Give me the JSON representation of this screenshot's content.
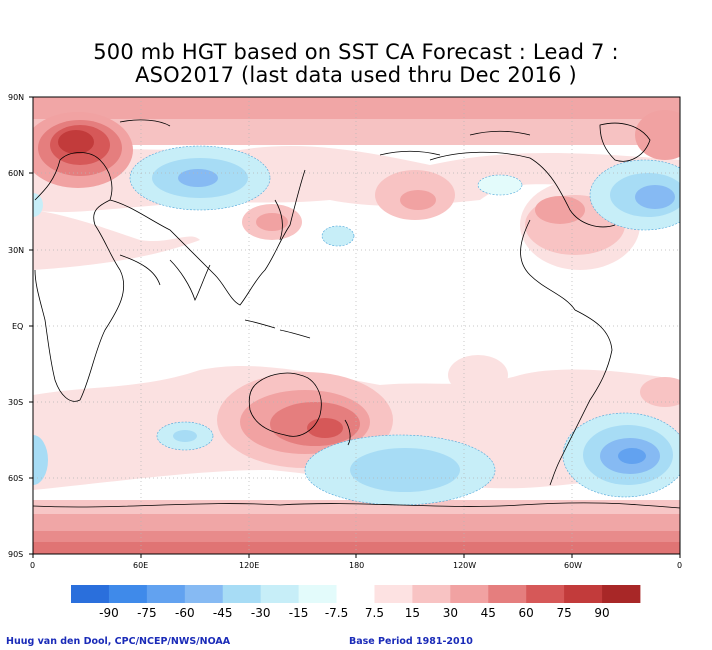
{
  "title": {
    "line1": "500 mb HGT based on SST CA Forecast : Lead 7 :",
    "line2": "ASO2017 (last data used thru Dec 2016 )"
  },
  "map": {
    "y_ticks": [
      "90N",
      "60N",
      "30N",
      "EQ",
      "30S",
      "60S",
      "90S"
    ],
    "x_ticks": [
      "0",
      "60E",
      "120E",
      "180",
      "120W",
      "60W",
      "0"
    ]
  },
  "colorbar": {
    "levels": [
      "-90",
      "-75",
      "-60",
      "-45",
      "-30",
      "-15",
      "-7.5",
      "7.5",
      "15",
      "30",
      "45",
      "60",
      "75",
      "90"
    ],
    "colors": [
      "#2a6fdc",
      "#3f8aea",
      "#62a2f0",
      "#86baf3",
      "#a7dcf5",
      "#c7eef8",
      "#e3fbfb",
      "#ffffff",
      "#fde2e2",
      "#f8c3c3",
      "#f1a2a2",
      "#e57e7e",
      "#d65858",
      "#c23b3b",
      "#a82727"
    ]
  },
  "footer": {
    "left": "Huug van den Dool, CPC/NCEP/NWS/NOAA",
    "right": "Base Period 1981-2010"
  }
}
